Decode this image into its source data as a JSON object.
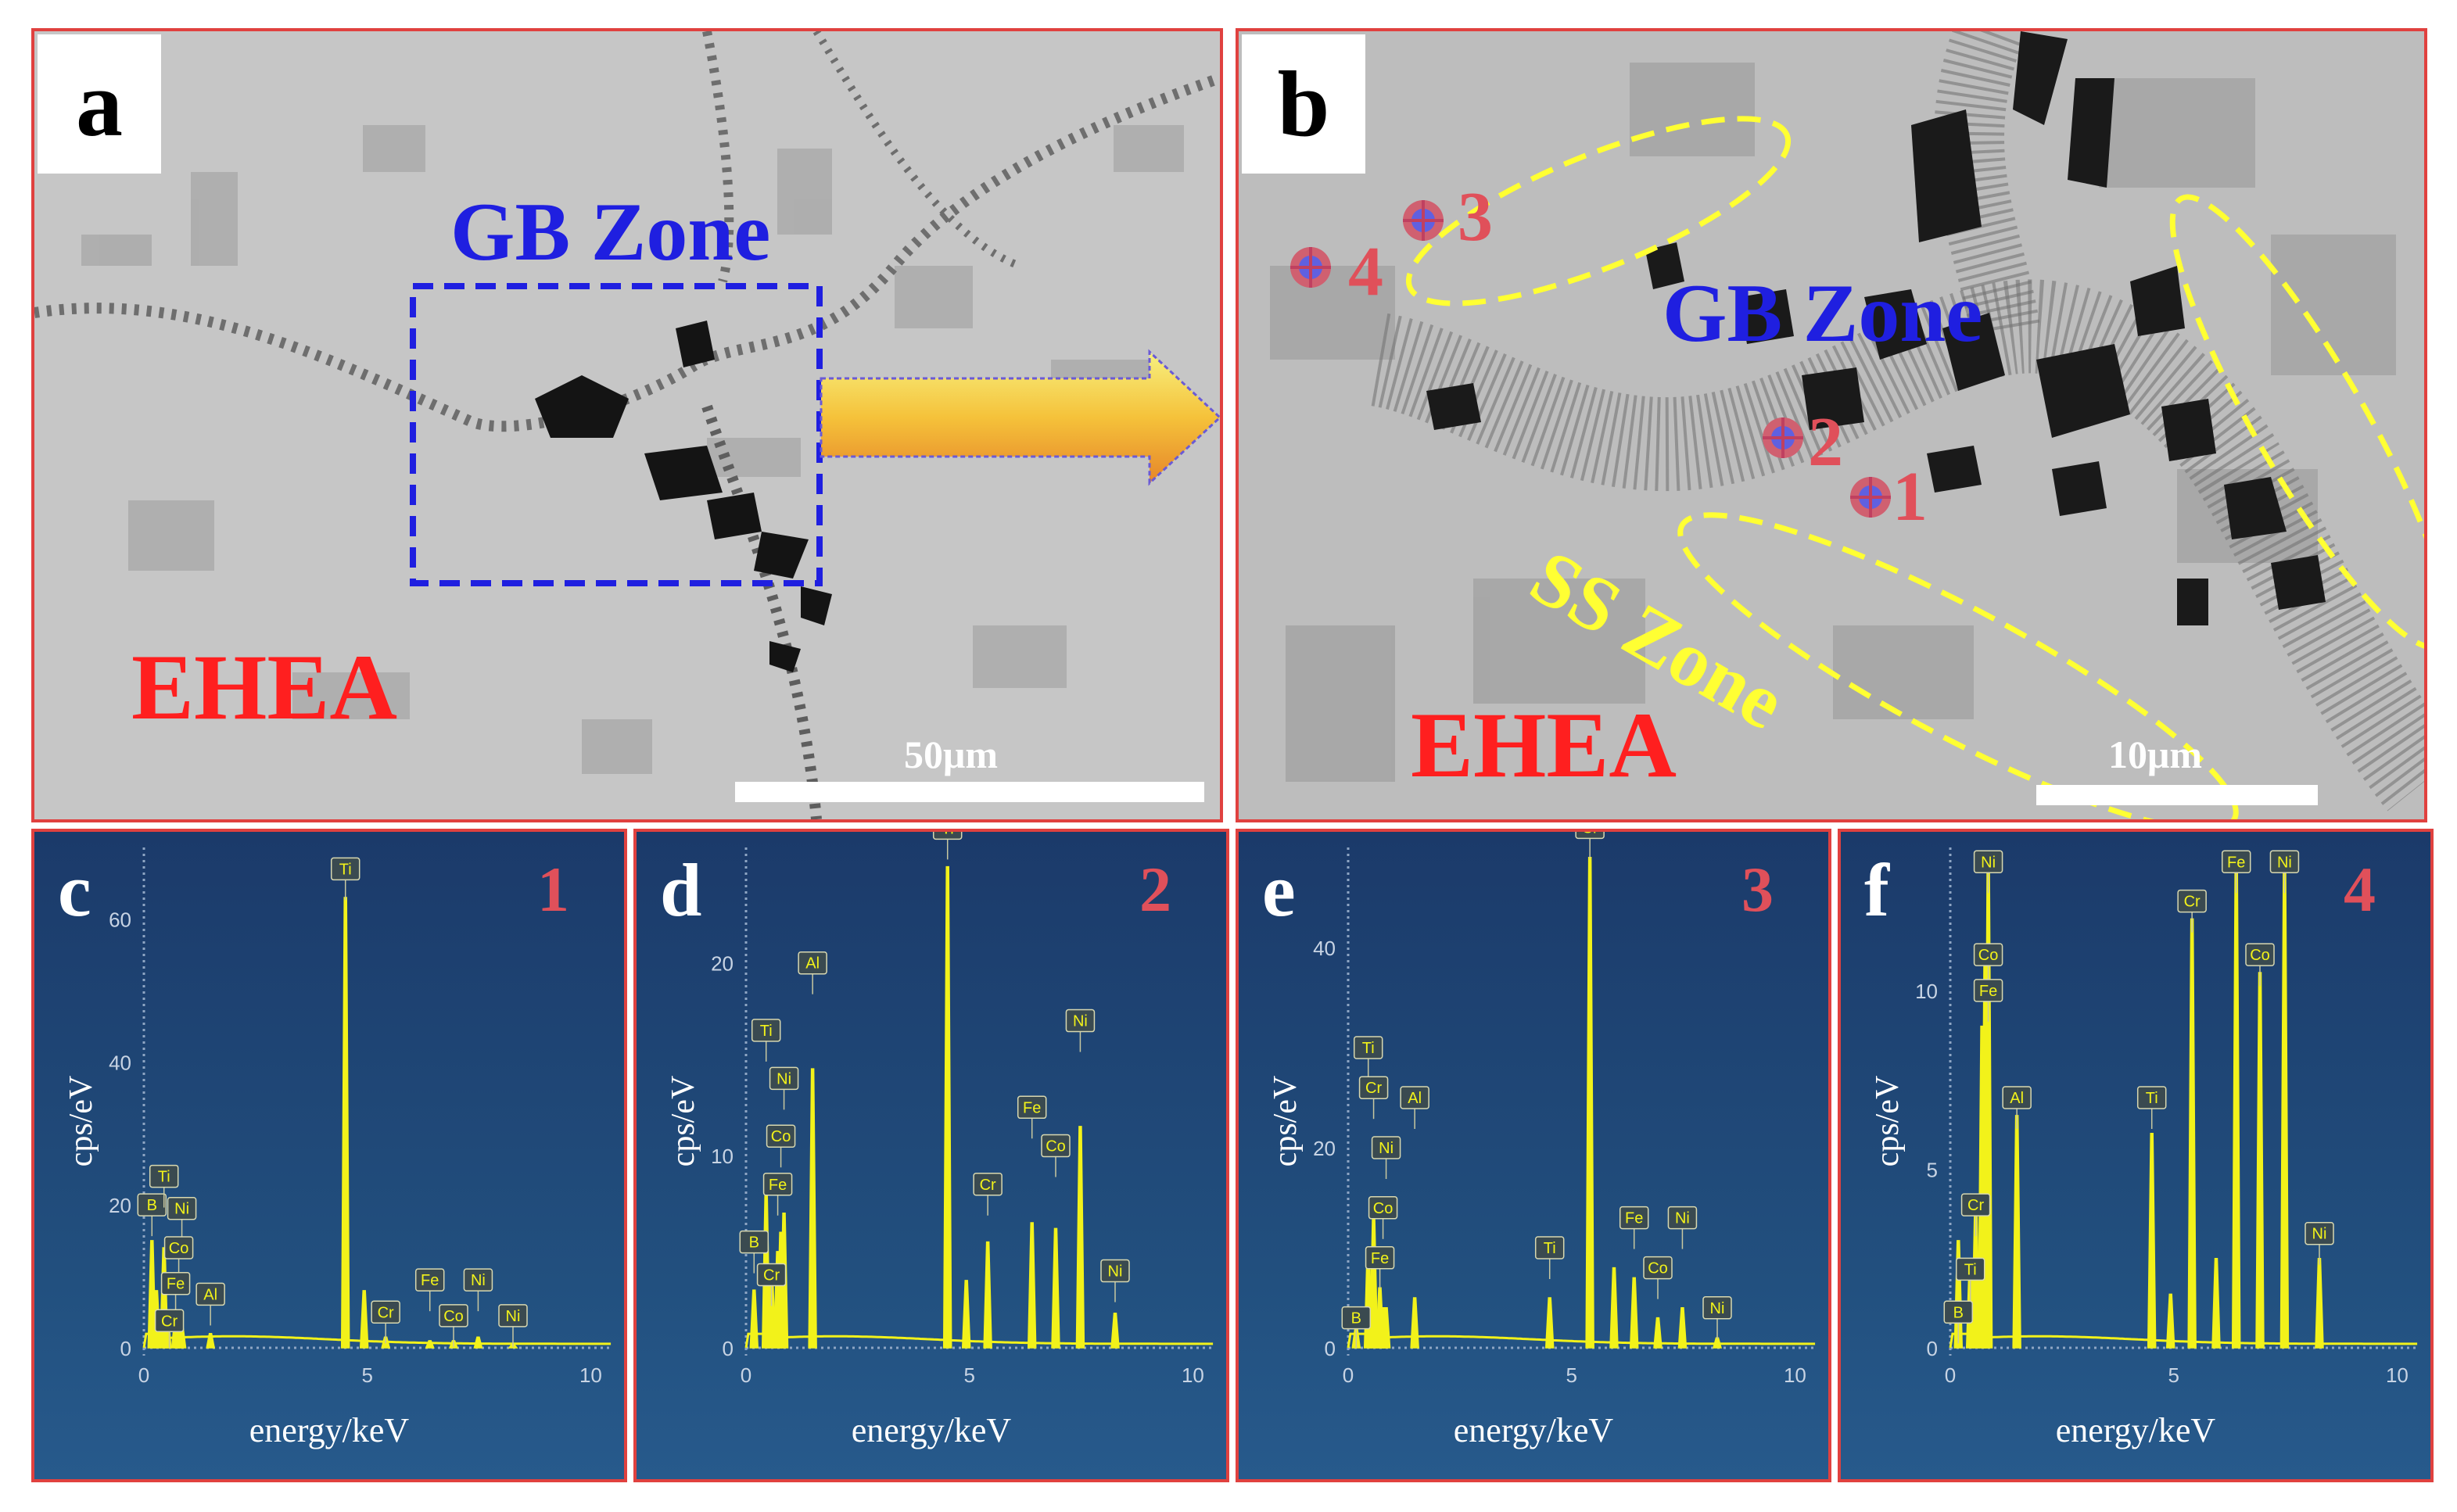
{
  "panels": {
    "a": {
      "label": "a",
      "zone_gb": "GB Zone",
      "zone_ehea": "EHEA",
      "scale": "50μm"
    },
    "b": {
      "label": "b",
      "zone_gb": "GB Zone",
      "zone_ehea": "EHEA",
      "zone_ss": "SS Zone",
      "scale": "10μm",
      "points": [
        "1",
        "2",
        "3",
        "4"
      ]
    }
  },
  "colors": {
    "frame": "#e0413f",
    "gb_zone": "#1f1fe0",
    "ehea": "#ff1f1f",
    "ss_zone": "#ffff33",
    "spectrum": "#f2f21a",
    "point": "#e0505a"
  },
  "chart_data": [
    {
      "type": "line",
      "panel": "c",
      "point": "1",
      "xlabel": "energy/keV",
      "ylabel": "cps/eV",
      "xlim": [
        0,
        10.5
      ],
      "ylim": [
        0,
        70
      ],
      "xticks": [
        0,
        5,
        10
      ],
      "yticks": [
        0,
        20,
        40,
        60
      ],
      "peaks": [
        {
          "x": 0.18,
          "y": 15
        },
        {
          "x": 0.28,
          "y": 8
        },
        {
          "x": 0.45,
          "y": 14
        },
        {
          "x": 0.52,
          "y": 5
        },
        {
          "x": 0.71,
          "y": 4
        },
        {
          "x": 0.78,
          "y": 3
        },
        {
          "x": 0.85,
          "y": 3
        },
        {
          "x": 1.49,
          "y": 2
        },
        {
          "x": 4.51,
          "y": 63
        },
        {
          "x": 4.93,
          "y": 8
        },
        {
          "x": 5.41,
          "y": 1.5
        },
        {
          "x": 6.4,
          "y": 1
        },
        {
          "x": 6.93,
          "y": 1
        },
        {
          "x": 7.48,
          "y": 1.5
        },
        {
          "x": 8.26,
          "y": 0.5
        }
      ],
      "element_labels": [
        {
          "el": "B",
          "x": 0.18,
          "y": 20
        },
        {
          "el": "Ti",
          "x": 0.45,
          "y": 24
        },
        {
          "el": "Ni",
          "x": 0.85,
          "y": 19.5
        },
        {
          "el": "Co",
          "x": 0.78,
          "y": 14
        },
        {
          "el": "Fe",
          "x": 0.71,
          "y": 9
        },
        {
          "el": "Cr",
          "x": 0.57,
          "y": 3.8
        },
        {
          "el": "Al",
          "x": 1.49,
          "y": 7.5
        },
        {
          "el": "Ti",
          "x": 4.51,
          "y": 67
        },
        {
          "el": "Cr",
          "x": 5.41,
          "y": 5
        },
        {
          "el": "Fe",
          "x": 6.4,
          "y": 9.5
        },
        {
          "el": "Co",
          "x": 6.93,
          "y": 4.5
        },
        {
          "el": "Ni",
          "x": 7.48,
          "y": 9.5
        },
        {
          "el": "Ni",
          "x": 8.26,
          "y": 4.5
        }
      ]
    },
    {
      "type": "line",
      "panel": "d",
      "point": "2",
      "xlabel": "energy/keV",
      "ylabel": "cps/eV",
      "xlim": [
        0,
        10.5
      ],
      "ylim": [
        0,
        26
      ],
      "xticks": [
        0,
        5,
        10
      ],
      "yticks": [
        0,
        10,
        20
      ],
      "peaks": [
        {
          "x": 0.18,
          "y": 3
        },
        {
          "x": 0.45,
          "y": 8
        },
        {
          "x": 0.57,
          "y": 4
        },
        {
          "x": 0.71,
          "y": 5
        },
        {
          "x": 0.78,
          "y": 6
        },
        {
          "x": 0.85,
          "y": 7
        },
        {
          "x": 1.49,
          "y": 14.5
        },
        {
          "x": 4.51,
          "y": 25
        },
        {
          "x": 4.93,
          "y": 3.5
        },
        {
          "x": 5.41,
          "y": 5.5
        },
        {
          "x": 6.4,
          "y": 6.5
        },
        {
          "x": 6.93,
          "y": 6.2
        },
        {
          "x": 7.48,
          "y": 11.5
        },
        {
          "x": 8.26,
          "y": 1.8
        }
      ],
      "element_labels": [
        {
          "el": "Ti",
          "x": 0.45,
          "y": 16.5
        },
        {
          "el": "Ni",
          "x": 0.85,
          "y": 14
        },
        {
          "el": "Co",
          "x": 0.78,
          "y": 11
        },
        {
          "el": "Fe",
          "x": 0.71,
          "y": 8.5
        },
        {
          "el": "B",
          "x": 0.18,
          "y": 5.5
        },
        {
          "el": "Cr",
          "x": 0.57,
          "y": 3.8
        },
        {
          "el": "Al",
          "x": 1.49,
          "y": 20
        },
        {
          "el": "Ti",
          "x": 4.51,
          "y": 27
        },
        {
          "el": "Cr",
          "x": 5.41,
          "y": 8.5
        },
        {
          "el": "Fe",
          "x": 6.4,
          "y": 12.5
        },
        {
          "el": "Co",
          "x": 6.93,
          "y": 10.5
        },
        {
          "el": "Ni",
          "x": 7.48,
          "y": 17
        },
        {
          "el": "Ni",
          "x": 8.26,
          "y": 4
        }
      ]
    },
    {
      "type": "line",
      "panel": "e",
      "point": "3",
      "xlabel": "energy/keV",
      "ylabel": "cps/eV",
      "xlim": [
        0,
        10.5
      ],
      "ylim": [
        0,
        50
      ],
      "xticks": [
        0,
        5,
        10
      ],
      "yticks": [
        0,
        20,
        40
      ],
      "peaks": [
        {
          "x": 0.18,
          "y": 2
        },
        {
          "x": 0.45,
          "y": 10
        },
        {
          "x": 0.57,
          "y": 13
        },
        {
          "x": 0.71,
          "y": 6
        },
        {
          "x": 0.78,
          "y": 4
        },
        {
          "x": 0.85,
          "y": 4
        },
        {
          "x": 1.49,
          "y": 5
        },
        {
          "x": 4.51,
          "y": 5
        },
        {
          "x": 5.41,
          "y": 49
        },
        {
          "x": 5.95,
          "y": 8
        },
        {
          "x": 6.4,
          "y": 7
        },
        {
          "x": 6.93,
          "y": 3
        },
        {
          "x": 7.48,
          "y": 4
        },
        {
          "x": 8.26,
          "y": 1
        }
      ],
      "element_labels": [
        {
          "el": "Ti",
          "x": 0.45,
          "y": 30
        },
        {
          "el": "Cr",
          "x": 0.57,
          "y": 26
        },
        {
          "el": "Al",
          "x": 1.49,
          "y": 25
        },
        {
          "el": "Ni",
          "x": 0.85,
          "y": 20
        },
        {
          "el": "Co",
          "x": 0.78,
          "y": 14
        },
        {
          "el": "Fe",
          "x": 0.71,
          "y": 9
        },
        {
          "el": "B",
          "x": 0.18,
          "y": 3
        },
        {
          "el": "Cr",
          "x": 5.41,
          "y": 52
        },
        {
          "el": "Ti",
          "x": 4.51,
          "y": 10
        },
        {
          "el": "Fe",
          "x": 6.4,
          "y": 13
        },
        {
          "el": "Co",
          "x": 6.93,
          "y": 8
        },
        {
          "el": "Ni",
          "x": 7.48,
          "y": 13
        },
        {
          "el": "Ni",
          "x": 8.26,
          "y": 4
        }
      ]
    },
    {
      "type": "line",
      "panel": "f",
      "point": "4",
      "xlabel": "energy/keV",
      "ylabel": "cps/eV",
      "xlim": [
        0,
        10.5
      ],
      "ylim": [
        0,
        14
      ],
      "xticks": [
        0,
        5,
        10
      ],
      "yticks": [
        0,
        5,
        10
      ],
      "peaks": [
        {
          "x": 0.18,
          "y": 3
        },
        {
          "x": 0.45,
          "y": 2.5
        },
        {
          "x": 0.57,
          "y": 4
        },
        {
          "x": 0.71,
          "y": 9
        },
        {
          "x": 0.78,
          "y": 11
        },
        {
          "x": 0.85,
          "y": 13.5
        },
        {
          "x": 1.49,
          "y": 6.5
        },
        {
          "x": 4.51,
          "y": 6
        },
        {
          "x": 4.93,
          "y": 1.5
        },
        {
          "x": 5.41,
          "y": 12
        },
        {
          "x": 5.95,
          "y": 2.5
        },
        {
          "x": 6.4,
          "y": 13.5
        },
        {
          "x": 6.93,
          "y": 10.5
        },
        {
          "x": 7.48,
          "y": 13.5
        },
        {
          "x": 8.26,
          "y": 2.5
        }
      ],
      "element_labels": [
        {
          "el": "Ni",
          "x": 0.85,
          "y": 13.6
        },
        {
          "el": "Co",
          "x": 0.85,
          "y": 11
        },
        {
          "el": "Fe",
          "x": 0.85,
          "y": 10
        },
        {
          "el": "Al",
          "x": 1.49,
          "y": 7
        },
        {
          "el": "Cr",
          "x": 0.57,
          "y": 4
        },
        {
          "el": "Ti",
          "x": 0.45,
          "y": 2.2
        },
        {
          "el": "B",
          "x": 0.18,
          "y": 1
        },
        {
          "el": "Ti",
          "x": 4.51,
          "y": 7
        },
        {
          "el": "Cr",
          "x": 5.41,
          "y": 12.5
        },
        {
          "el": "Fe",
          "x": 6.4,
          "y": 13.6
        },
        {
          "el": "Co",
          "x": 6.93,
          "y": 11
        },
        {
          "el": "Ni",
          "x": 7.48,
          "y": 13.6
        },
        {
          "el": "Ni",
          "x": 8.26,
          "y": 3.2
        }
      ]
    }
  ]
}
